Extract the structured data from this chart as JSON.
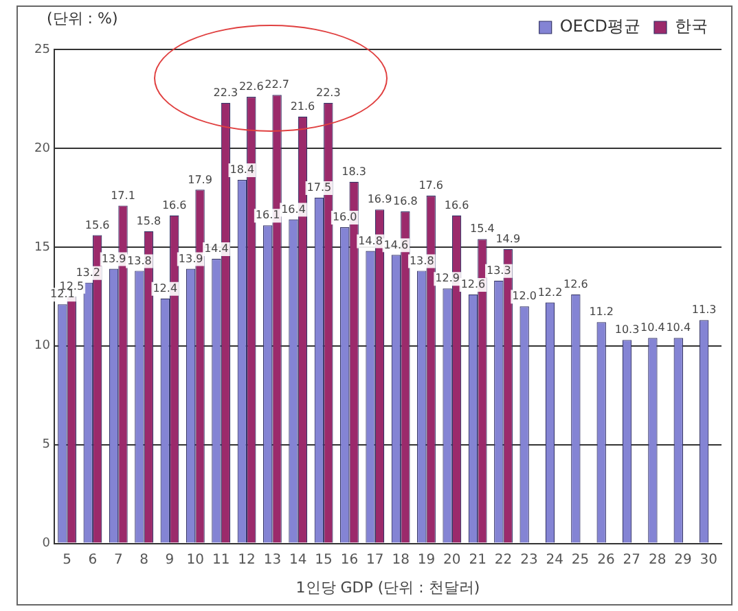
{
  "chart_data": {
    "type": "bar",
    "ylabel": "(단위 : %)",
    "xlabel": "1인당 GDP (단위 : 천달러)",
    "categories": [
      "5",
      "6",
      "7",
      "8",
      "9",
      "10",
      "11",
      "12",
      "13",
      "14",
      "15",
      "16",
      "17",
      "18",
      "19",
      "20",
      "21",
      "22",
      "23",
      "24",
      "25",
      "26",
      "27",
      "28",
      "29",
      "30"
    ],
    "series": [
      {
        "name": "OECD평균",
        "color": "#8484d4",
        "values": [
          12.1,
          13.2,
          13.9,
          13.8,
          12.4,
          13.9,
          14.4,
          18.4,
          16.1,
          16.4,
          17.5,
          16.0,
          14.8,
          14.6,
          13.8,
          12.9,
          12.6,
          13.3,
          12.0,
          12.2,
          12.6,
          11.2,
          10.3,
          10.4,
          10.4,
          11.3
        ],
        "value_labels": [
          "12.1",
          "13.2",
          "13.9",
          "13.8",
          "12.4",
          "13.9",
          "14.4",
          "18.4",
          "16.1",
          "16.4",
          "17.5",
          "16.0",
          "14.8",
          "14.6",
          "13.8",
          "12.9",
          "12.6",
          "13.3",
          "12.0",
          "12.2",
          "12.6",
          "11.2",
          "10.3",
          "10.4",
          "10.4",
          "11.3"
        ]
      },
      {
        "name": "한국",
        "color": "#9b2a6b",
        "values": [
          12.5,
          15.6,
          17.1,
          15.8,
          16.6,
          17.9,
          22.3,
          22.6,
          22.7,
          21.6,
          22.3,
          18.3,
          16.9,
          16.8,
          17.6,
          16.6,
          15.4,
          14.9,
          null,
          null,
          null,
          null,
          null,
          null,
          null,
          null
        ],
        "value_labels": [
          "12.5",
          "15.6",
          "17.1",
          "15.8",
          "16.6",
          "17.9",
          "22.3",
          "22.6",
          "22.7",
          "21.6",
          "22.3",
          "18.3",
          "16.9",
          "16.8",
          "17.6",
          "16.6",
          "15.4",
          "14.9",
          null,
          null,
          null,
          null,
          null,
          null,
          null,
          null
        ]
      }
    ],
    "ylim": [
      0,
      25
    ],
    "yticks": [
      0,
      5,
      10,
      15,
      20,
      25
    ],
    "grid": "y",
    "legend": "top right"
  }
}
